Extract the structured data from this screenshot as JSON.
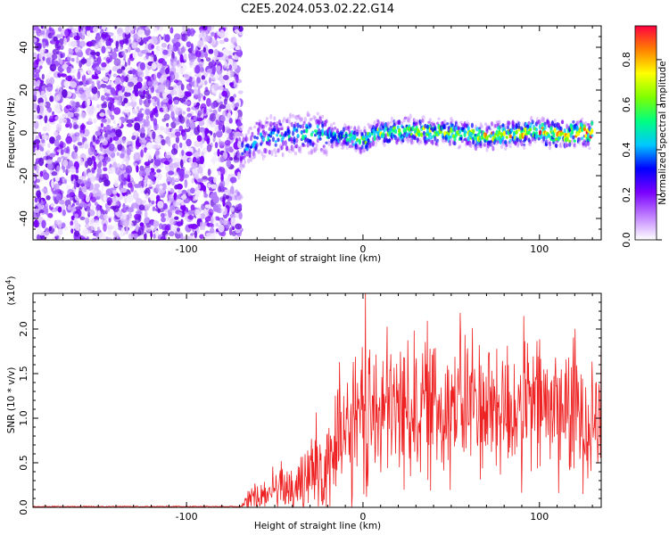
{
  "title": "C2E5.2024.053.02.22.G14",
  "chart_data": [
    {
      "type": "heatmap",
      "xlabel": "Height of straight line (km)",
      "ylabel": "Frequency (Hz)",
      "xlim": [
        -187,
        135
      ],
      "ylim": [
        -50,
        50
      ],
      "xticks": [
        -100,
        0,
        100
      ],
      "yticks": [
        -40,
        -20,
        0,
        20,
        40
      ],
      "noise_region_x": [
        -187,
        -69
      ],
      "signal_track": {
        "x": [
          -69,
          -60,
          -50,
          -40,
          -30,
          -20,
          -10,
          0,
          10,
          20,
          30,
          40,
          50,
          60,
          70,
          80,
          90,
          100,
          110,
          120,
          130
        ],
        "frequency_hz": [
          -8,
          -3,
          -2,
          -1,
          0,
          -1,
          -2,
          -3,
          0,
          1,
          1,
          0,
          0,
          -1,
          -2,
          -1,
          0,
          1,
          -1,
          0,
          0
        ],
        "peak_amplitude": [
          0.35,
          0.4,
          0.45,
          0.45,
          0.5,
          0.5,
          0.55,
          0.6,
          0.65,
          0.7,
          0.7,
          0.75,
          0.7,
          0.7,
          0.75,
          0.75,
          0.8,
          0.8,
          0.85,
          0.85,
          0.9
        ]
      },
      "colorbar": {
        "label": "Normalized spectral amplitude",
        "range": [
          0.0,
          0.95
        ],
        "ticks": [
          0.0,
          0.2,
          0.4,
          0.6,
          0.8
        ],
        "tick_labels": [
          "0.0",
          "0.2",
          "0.4",
          "0.6",
          "0.8"
        ],
        "colors": [
          "#ffffff",
          "#c080ff",
          "#7a00ff",
          "#0000ff",
          "#00c8ff",
          "#00ff80",
          "#80ff00",
          "#ffff00",
          "#ff8000",
          "#ff0040"
        ]
      }
    },
    {
      "type": "line",
      "xlabel": "Height of straight line (km)",
      "ylabel": "SNR (10 * v/v)",
      "y_multiplier_label": "(x10",
      "y_multiplier_exp": "4",
      "y_multiplier_close": ")",
      "xlim": [
        -187,
        135
      ],
      "ylim": [
        0,
        2.4
      ],
      "xticks": [
        -100,
        0,
        100
      ],
      "yticks": [
        0.0,
        0.5,
        1.0,
        1.5,
        2.0
      ],
      "ytick_labels": [
        "0.0",
        "0.5",
        "1.0",
        "1.5",
        "2.0"
      ],
      "series": [
        {
          "color": "#ee2222",
          "envelope_x": [
            -187,
            -70,
            -62,
            -55,
            -50,
            -45,
            -40,
            -35,
            -30,
            -25,
            -20,
            -15,
            -10,
            -5,
            0,
            5,
            10,
            20,
            30,
            40,
            50,
            60,
            70,
            80,
            90,
            100,
            110,
            120,
            130,
            135
          ],
          "envelope_mean": [
            0.0,
            0.0,
            0.1,
            0.15,
            0.2,
            0.2,
            0.25,
            0.3,
            0.35,
            0.45,
            0.55,
            0.65,
            0.75,
            0.85,
            0.95,
            1.0,
            1.05,
            1.1,
            1.15,
            1.15,
            1.15,
            1.2,
            1.15,
            1.1,
            1.1,
            1.15,
            1.1,
            1.1,
            1.05,
            1.0
          ],
          "envelope_spread": [
            0.01,
            0.01,
            0.25,
            0.3,
            0.35,
            0.4,
            0.5,
            0.6,
            0.7,
            0.8,
            0.9,
            1.0,
            1.0,
            1.1,
            1.2,
            1.1,
            1.1,
            1.1,
            1.1,
            1.1,
            1.1,
            1.1,
            1.05,
            1.05,
            1.1,
            1.05,
            1.05,
            1.05,
            1.0,
            0.9
          ],
          "peak": {
            "x": 1.5,
            "y": 2.4
          }
        }
      ]
    }
  ]
}
